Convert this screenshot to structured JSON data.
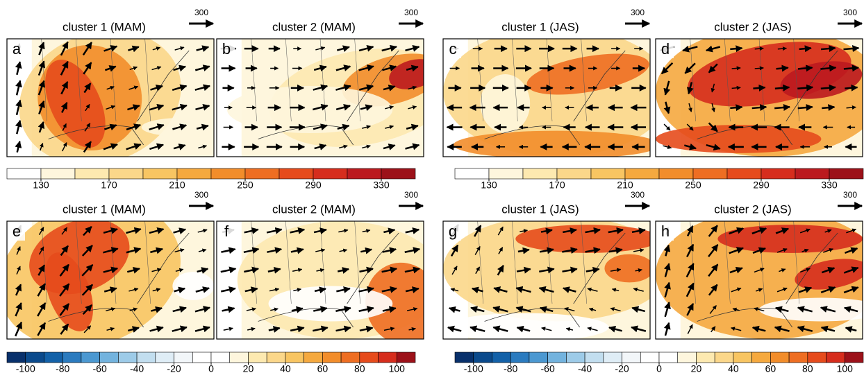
{
  "panels": [
    {
      "letter": "a",
      "title": "cluster 1 (MAM)",
      "reference_vector": 300
    },
    {
      "letter": "b",
      "title": "cluster 2 (MAM)",
      "reference_vector": 300
    },
    {
      "letter": "c",
      "title": "cluster 1 (JAS)",
      "reference_vector": 300
    },
    {
      "letter": "d",
      "title": "cluster 2 (JAS)",
      "reference_vector": 300
    },
    {
      "letter": "e",
      "title": "cluster 1 (MAM)",
      "reference_vector": 300
    },
    {
      "letter": "f",
      "title": "cluster 2 (MAM)",
      "reference_vector": 300
    },
    {
      "letter": "g",
      "title": "cluster 1 (JAS)",
      "reference_vector": 300
    },
    {
      "letter": "h",
      "title": "cluster 2 (JAS)",
      "reference_vector": 300
    }
  ],
  "colorbars": [
    {
      "lim": [
        110,
        350
      ],
      "ticks": [
        130,
        170,
        210,
        250,
        290,
        330
      ],
      "colors": [
        "#ffffff",
        "#fef6dd",
        "#fde9b0",
        "#fbd78a",
        "#f8c562",
        "#f5a93f",
        "#f28d2b",
        "#ee6e22",
        "#e64b1c",
        "#d62d1d",
        "#bb1a1f",
        "#9c1119"
      ]
    },
    {
      "lim": [
        110,
        350
      ],
      "ticks": [
        130,
        170,
        210,
        250,
        290,
        330
      ],
      "colors": [
        "#ffffff",
        "#fef6dd",
        "#fde9b0",
        "#fbd78a",
        "#f8c562",
        "#f5a93f",
        "#f28d2b",
        "#ee6e22",
        "#e64b1c",
        "#d62d1d",
        "#bb1a1f",
        "#9c1119"
      ]
    },
    {
      "lim": [
        -110,
        110
      ],
      "ticks": [
        -100,
        -80,
        -60,
        -40,
        -20,
        0,
        20,
        40,
        60,
        80,
        100
      ],
      "colors": [
        "#08306b",
        "#0b4a8c",
        "#1361a8",
        "#2b7bbf",
        "#4b98d1",
        "#73b3de",
        "#9dcbe8",
        "#c2deef",
        "#dfedf6",
        "#f2f6f9",
        "#ffffff",
        "#ffffff",
        "#fef6dd",
        "#fde9b0",
        "#fbd78a",
        "#f8c562",
        "#f5a93f",
        "#f28d2b",
        "#ee6e22",
        "#e64b1c",
        "#d62d1d",
        "#9c1119"
      ]
    },
    {
      "lim": [
        -110,
        110
      ],
      "ticks": [
        -100,
        -80,
        -60,
        -40,
        -20,
        0,
        20,
        40,
        60,
        80,
        100
      ],
      "colors": [
        "#08306b",
        "#0b4a8c",
        "#1361a8",
        "#2b7bbf",
        "#4b98d1",
        "#73b3de",
        "#9dcbe8",
        "#c2deef",
        "#dfedf6",
        "#f2f6f9",
        "#ffffff",
        "#ffffff",
        "#fef6dd",
        "#fde9b0",
        "#fbd78a",
        "#f8c562",
        "#f5a93f",
        "#f28d2b",
        "#ee6e22",
        "#e64b1c",
        "#d62d1d",
        "#9c1119"
      ]
    }
  ]
}
